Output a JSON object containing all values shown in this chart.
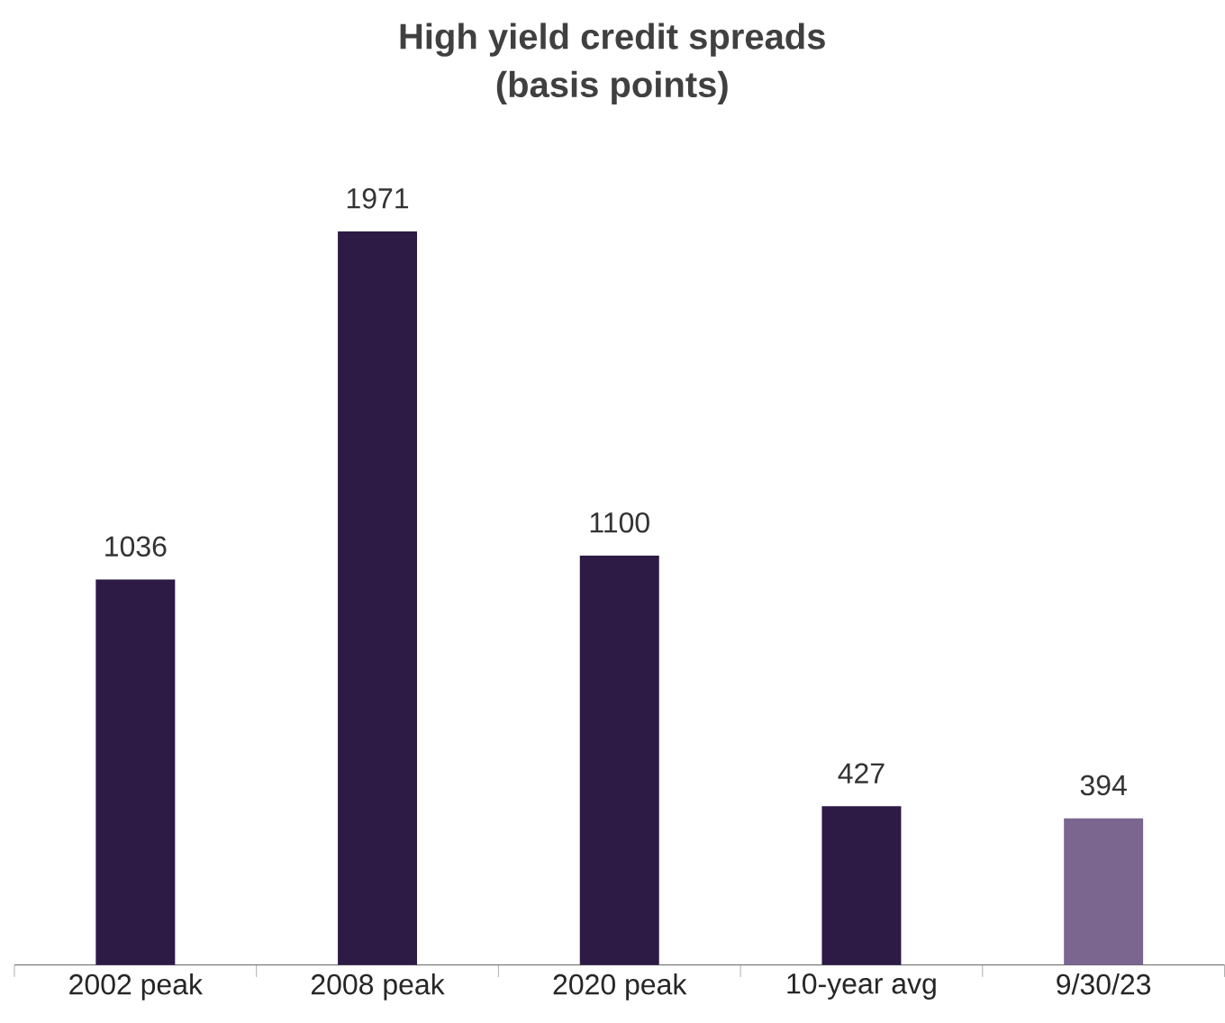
{
  "chart_data": {
    "type": "bar",
    "title": "High yield credit spreads",
    "subtitle": "(basis points)",
    "categories": [
      "2002 peak",
      "2008 peak",
      "2020 peak",
      "10-year avg",
      "9/30/23"
    ],
    "values": [
      1036,
      1971,
      1100,
      427,
      394
    ],
    "colors": [
      "#2d1a45",
      "#2d1a45",
      "#2d1a45",
      "#2d1a45",
      "#7b6690"
    ],
    "data_labels": true
  }
}
